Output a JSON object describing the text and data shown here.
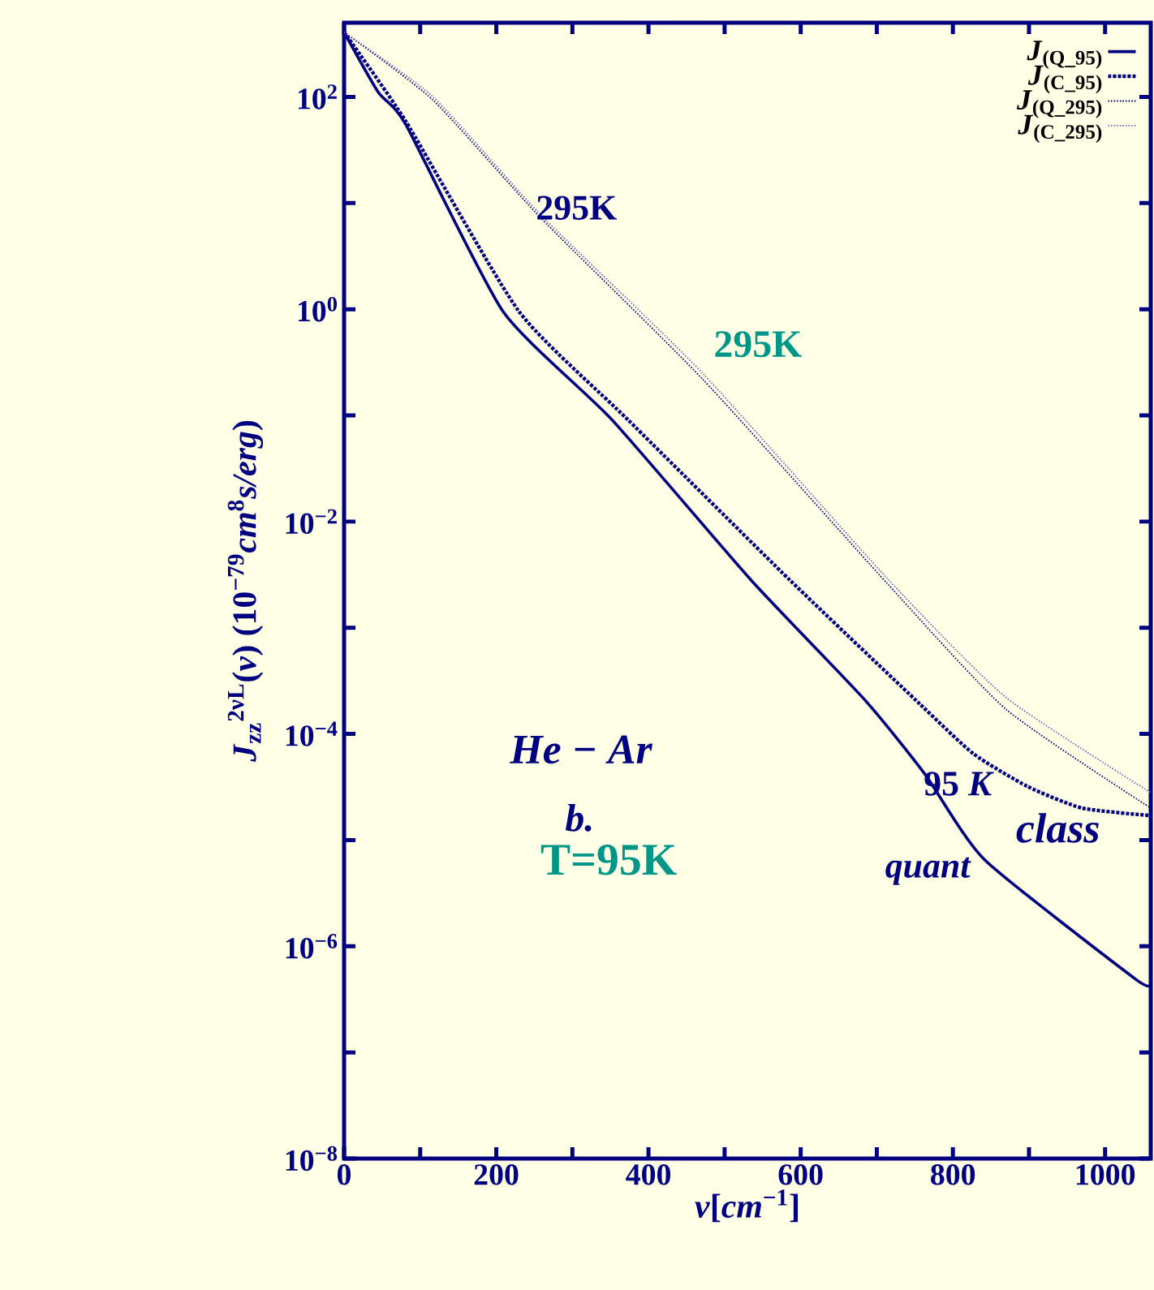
{
  "chart_data": {
    "type": "line",
    "xlabel": "*ν*[*cm*$^{−1}$]",
    "ylabel": "*J*$_{zz}$$^{2νL}$(*ν*) (10$^{−79}$*cm*$^{8}$*s/erg*)",
    "series": [
      {
        "name": "*J*$_{(Q_95)}$",
        "color": "#000080",
        "line_style": "solid",
        "x": [
          0,
          44.8,
          81,
          209,
          352,
          535,
          684,
          763,
          842,
          1040,
          1060
        ],
        "values": [
          407,
          111,
          55,
          0.95,
          0.091,
          0.0028,
          0.00021,
          4.2e-05,
          6.5e-06,
          4.9e-07,
          4.4e-07
        ]
      },
      {
        "name": "*J*$_{(C_95)}$",
        "color": "#000080",
        "line_style": "dashed",
        "x": [
          0,
          81,
          230,
          373,
          586,
          757,
          827,
          898,
          970,
          1060
        ],
        "values": [
          407,
          59,
          0.95,
          0.091,
          0.0028,
          0.00019,
          6.5e-05,
          3.2e-05,
          2e-05,
          1.7e-05
        ]
      },
      {
        "name": "*J*$_{(Q_295)}$",
        "color": "#000080",
        "line_style": "dotted",
        "x": [
          0,
          117,
          258,
          471,
          714,
          870,
          1060
        ],
        "values": [
          407,
          93,
          7.3,
          0.22,
          0.0026,
          0.00017,
          2e-05
        ]
      },
      {
        "name": "*J*$_{(C_295)}$",
        "color": "#6a6ac0",
        "line_style": "dotted",
        "x": [
          0,
          117,
          258,
          471,
          714,
          870,
          1060
        ],
        "values": [
          407,
          100,
          7.8,
          0.25,
          0.0029,
          0.00022,
          2.8e-05
        ]
      }
    ],
    "log": "y",
    "xlim": [
      0,
      1060
    ],
    "ylim": [
      1e-08,
      500
    ],
    "xticks": [
      0,
      {
        "value": 100,
        "label": null
      },
      200,
      {
        "value": 300,
        "label": null
      },
      400,
      {
        "value": 500,
        "label": null
      },
      600,
      {
        "value": 700,
        "label": null
      },
      800,
      {
        "value": 900,
        "label": null
      },
      1000
    ],
    "yticks": [
      {
        "value": 1e-08,
        "label": "10$^{−8}$"
      },
      {
        "value": 1e-07,
        "label": null
      },
      {
        "value": 1e-06,
        "label": "10$^{−6}$"
      },
      {
        "value": 1e-05,
        "label": null
      },
      {
        "value": 0.0001,
        "label": "10$^{−4}$"
      },
      {
        "value": 0.001,
        "label": null
      },
      {
        "value": 0.01,
        "label": "10$^{−2}$"
      },
      {
        "value": 0.1,
        "label": null
      },
      {
        "value": 1,
        "label": "10$^{0}$"
      },
      {
        "value": 10,
        "label": null
      },
      {
        "value": 100,
        "label": "10$^{2}$"
      }
    ],
    "annotations": [
      "295K",
      "295K",
      "*He − Ar*",
      "*b.*",
      "T=95K",
      "95 *K*",
      "*class*",
      "*quant*"
    ],
    "grid": false,
    "legend": "top right"
  }
}
